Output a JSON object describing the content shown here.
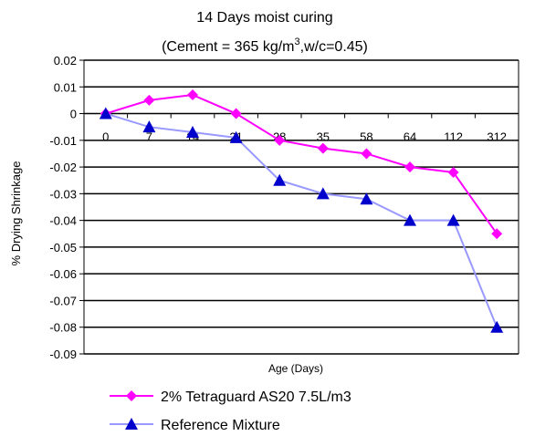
{
  "chart_data": {
    "type": "line",
    "title_line1": "14 Days moist curing",
    "title_line2_prefix": "(Cement = 365 kg/m",
    "title_line2_sup": "3",
    "title_line2_suffix": ",w/c=0.45)",
    "xlabel": "Age (Days)",
    "ylabel": "% Drying Shrinkage",
    "categories": [
      "0",
      "7",
      "14",
      "21",
      "28",
      "35",
      "58",
      "64",
      "112",
      "312"
    ],
    "ylim": [
      -0.09,
      0.02
    ],
    "yticks": [
      0.02,
      0.01,
      0,
      -0.01,
      -0.02,
      -0.03,
      -0.04,
      -0.05,
      -0.06,
      -0.07,
      -0.08,
      -0.09
    ],
    "ytick_labels": [
      "0.02",
      "0.01",
      "0",
      "-0.01",
      "-0.02",
      "-0.03",
      "-0.04",
      "-0.05",
      "-0.06",
      "-0.07",
      "-0.08",
      "-0.09"
    ],
    "grid": "horizontal",
    "legend_position": "bottom",
    "series": [
      {
        "name": "2% Tetraguard AS20 7.5L/m3",
        "color": "#ff00ff",
        "marker": "diamond",
        "values": [
          0,
          0.005,
          0.007,
          0,
          -0.01,
          -0.013,
          -0.015,
          -0.02,
          -0.022,
          -0.045
        ]
      },
      {
        "name": "Reference Mixture",
        "color": "#9999ff",
        "marker_color": "#0000cc",
        "marker": "triangle",
        "values": [
          0,
          -0.005,
          -0.007,
          -0.009,
          -0.025,
          -0.03,
          -0.032,
          -0.04,
          -0.04,
          -0.08
        ]
      }
    ]
  }
}
